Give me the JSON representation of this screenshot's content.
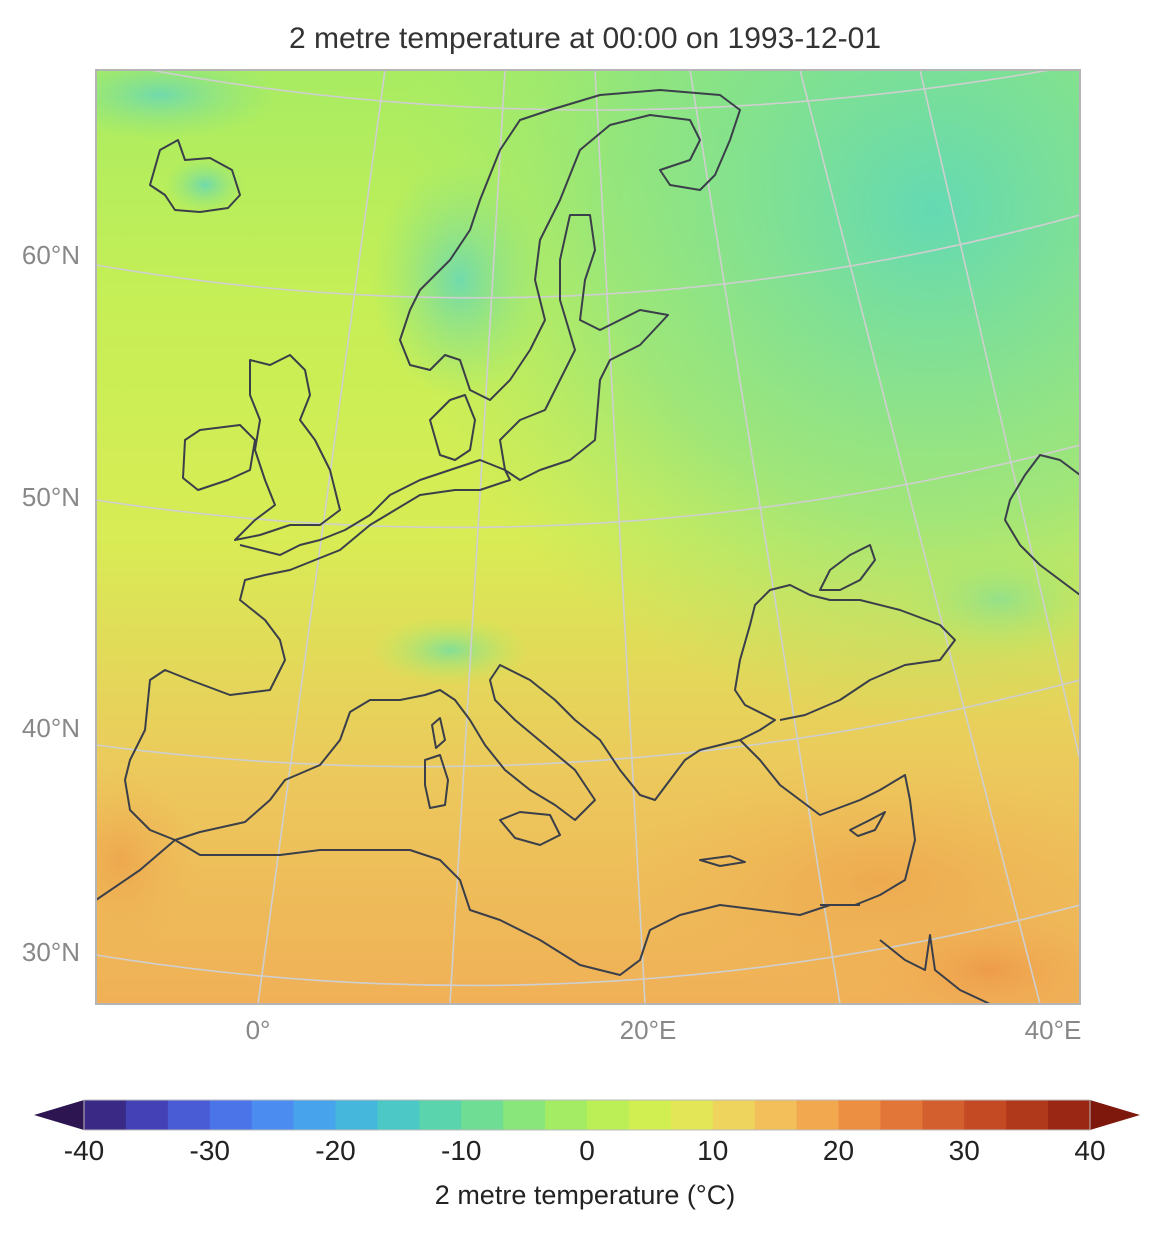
{
  "title": "2 metre temperature at 00:00 on 1993-12-01",
  "lat_labels": [
    "60°N",
    "50°N",
    "40°N",
    "30°N"
  ],
  "lon_labels": [
    "0°",
    "20°E",
    "40°E"
  ],
  "colorbar": {
    "label": "2 metre temperature (°C)",
    "ticks": [
      "-40",
      "-30",
      "-20",
      "-10",
      "0",
      "10",
      "20",
      "30",
      "40"
    ],
    "min": -40,
    "max": 40,
    "extend": "both",
    "colors": [
      "#2d1552",
      "#3a2a86",
      "#4341b5",
      "#4a5bd6",
      "#4b74e8",
      "#4a8cf0",
      "#46a3ec",
      "#45b7dd",
      "#4cc8c6",
      "#5ad4ad",
      "#6fdd94",
      "#88e67a",
      "#a3ec64",
      "#bcef55",
      "#d2ef52",
      "#e3e656",
      "#eed45c",
      "#f3bf5b",
      "#f2a84f",
      "#ec8f42",
      "#e27638",
      "#d45f2e",
      "#c44a24",
      "#b0381b",
      "#992713",
      "#7e180c"
    ]
  },
  "chart_data": {
    "type": "heatmap",
    "title": "2 metre temperature at 00:00 on 1993-12-01",
    "variable": "2 metre temperature",
    "units": "°C",
    "colorbar_range": [
      -40,
      40
    ],
    "colorbar_ticks": [
      -40,
      -30,
      -20,
      -10,
      0,
      10,
      20,
      30,
      40
    ],
    "lat_ticks": [
      "30°N",
      "40°N",
      "50°N",
      "60°N"
    ],
    "lon_ticks": [
      "0°",
      "20°E",
      "40°E"
    ],
    "regions": [
      {
        "region": "Iberia / North Africa coast",
        "approx_value": 15
      },
      {
        "region": "Mediterranean Sea",
        "approx_value": 17
      },
      {
        "region": "Western/Central Europe",
        "approx_value": 5
      },
      {
        "region": "Alps",
        "approx_value": -7
      },
      {
        "region": "Scandinavia / Norway mountains",
        "approx_value": -10
      },
      {
        "region": "Northern Russia / Finland",
        "approx_value": -10
      },
      {
        "region": "Egypt / Sinai",
        "approx_value": 20
      }
    ]
  }
}
